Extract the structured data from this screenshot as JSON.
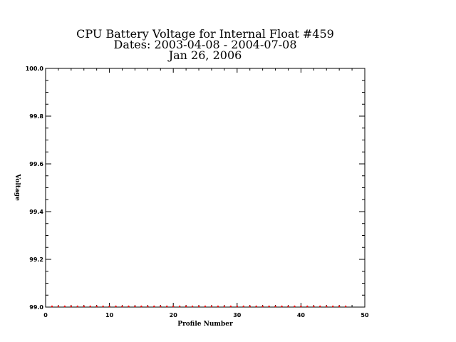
{
  "chart_data": {
    "type": "scatter",
    "title": [
      "CPU Battery Voltage for Internal Float #459",
      "Dates:  2003-04-08 -  2004-07-08",
      "Jan 26, 2006"
    ],
    "xlabel": "Profile Number",
    "ylabel": "Voltage",
    "xlim": [
      0,
      50
    ],
    "ylim": [
      99.0,
      100.0
    ],
    "x_ticks": [
      0,
      10,
      20,
      30,
      40,
      50
    ],
    "x_tick_labels": [
      "0",
      "10",
      "20",
      "30",
      "40",
      "50"
    ],
    "y_ticks": [
      99.0,
      99.2,
      99.4,
      99.6,
      99.8,
      100.0
    ],
    "y_tick_labels": [
      "99.0",
      "99.2",
      "99.4",
      "99.6",
      "99.8",
      "100.0"
    ],
    "grid": false,
    "series": [
      {
        "color": "#ff0000",
        "x": [
          1,
          2,
          3,
          4,
          5,
          6,
          7,
          8,
          9,
          10,
          11,
          12,
          13,
          14,
          15,
          16,
          17,
          18,
          19,
          20,
          21,
          22,
          23,
          24,
          25,
          26,
          27,
          28,
          29,
          30,
          31,
          32,
          33,
          34,
          35,
          36,
          37,
          38,
          39,
          40,
          41,
          42,
          43,
          44,
          45,
          46,
          47
        ],
        "y": [
          99,
          99,
          99,
          99,
          99,
          99,
          99,
          99,
          99,
          99,
          99,
          99,
          99,
          99,
          99,
          99,
          99,
          99,
          99,
          99,
          99,
          99,
          99,
          99,
          99,
          99,
          99,
          99,
          99,
          99,
          99,
          99,
          99,
          99,
          99,
          99,
          99,
          99,
          99,
          99,
          99,
          99,
          99,
          99,
          99,
          99,
          99
        ]
      }
    ]
  }
}
